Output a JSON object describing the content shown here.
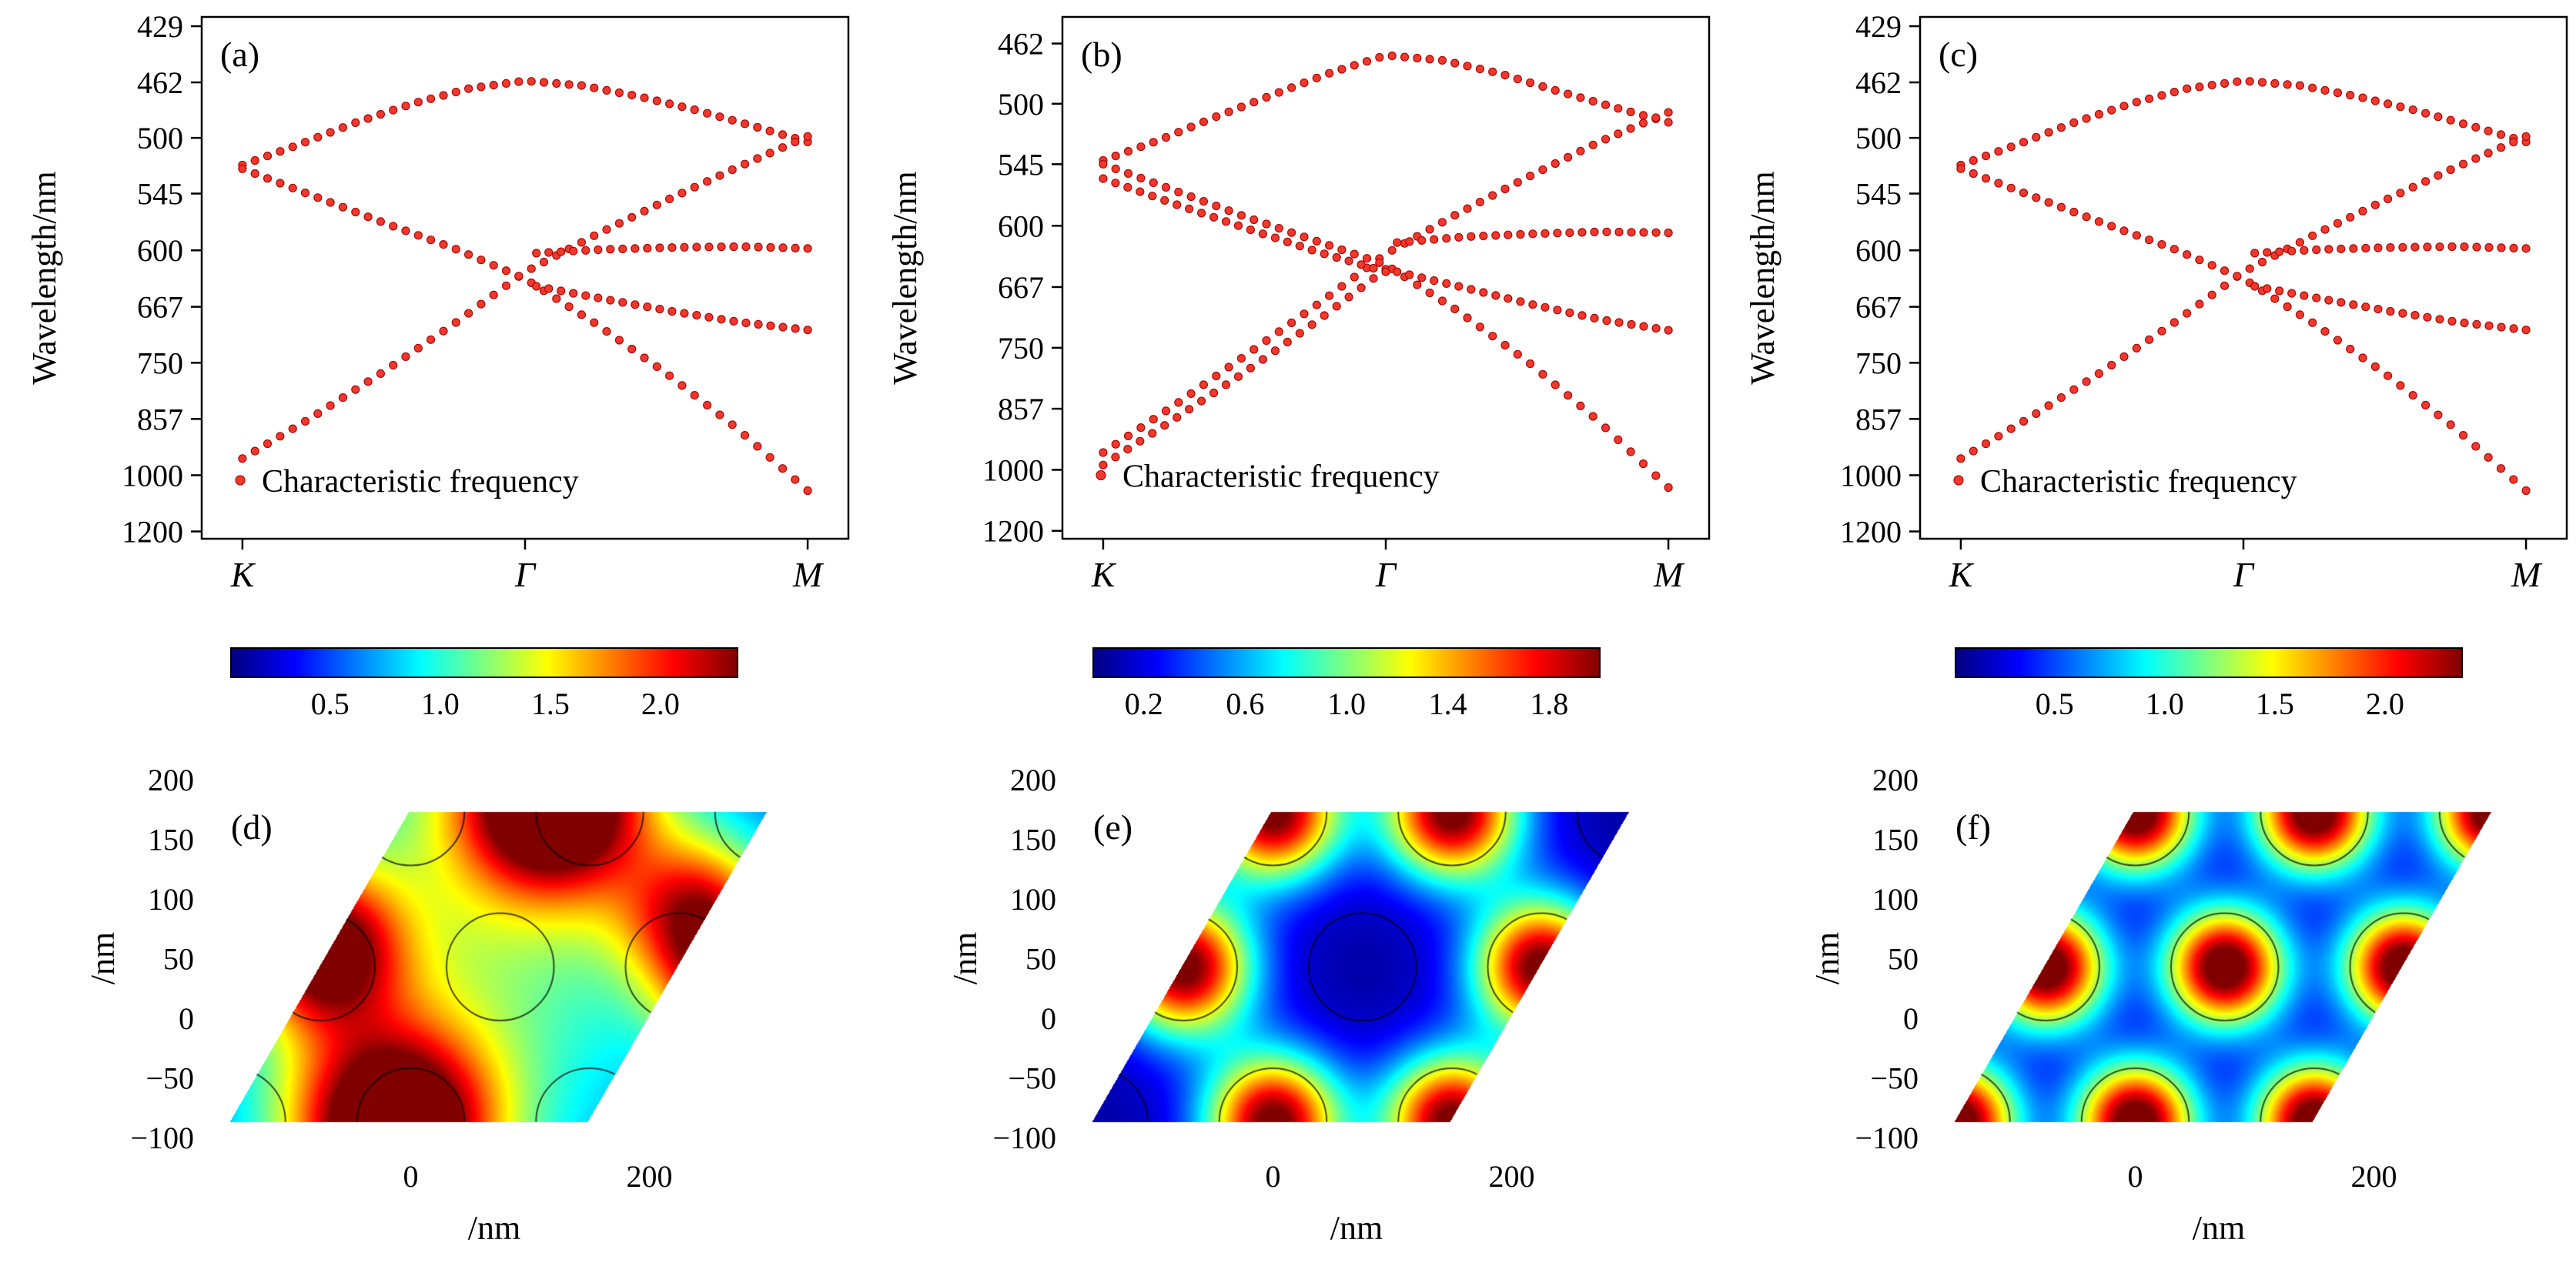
{
  "colors": {
    "dot": "#f2372b",
    "dot_edge": "#a80b0b",
    "axis": "#000000",
    "background": "#ffffff"
  },
  "chart_data": [
    {
      "id": "a",
      "type": "scatter",
      "panel_label": "(a)",
      "ylabel": "Wavelength/nm",
      "legend": "Characteristic frequency",
      "x_ticks": [
        {
          "pos": 0,
          "label": "K"
        },
        {
          "pos": 0.5,
          "label": "Γ"
        },
        {
          "pos": 1,
          "label": "M"
        }
      ],
      "y_ticks": [
        429,
        462,
        500,
        545,
        600,
        667,
        750,
        857,
        1000,
        1200
      ],
      "wl_range": [
        424,
        1232
      ],
      "legend_wl": 1015,
      "bands": [
        {
          "x": [
            0,
            0.1,
            0.2,
            0.3,
            0.4,
            0.5,
            0.6,
            0.7,
            0.8,
            0.9,
            1.0
          ],
          "wl": [
            521,
            505,
            489,
            476,
            466,
            461,
            464,
            471,
            480,
            491,
            503
          ]
        },
        {
          "x": [
            0,
            0.125,
            0.25,
            0.375,
            0.5,
            0.625,
            0.75,
            0.875,
            1.0
          ],
          "wl": [
            953,
            852,
            765,
            690,
            624,
            584,
            551,
            523,
            499
          ]
        },
        {
          "x": [
            0,
            0.125,
            0.25,
            0.375,
            0.5,
            0.625,
            0.75,
            0.875,
            1.0
          ],
          "wl": [
            524,
            547,
            572,
            598,
            632,
            690,
            768,
            878,
            1048
          ]
        },
        {
          "x": [
            0.52,
            0.64,
            0.76,
            0.88,
            1.0
          ],
          "wl": [
            603,
            599,
            597,
            596,
            598
          ]
        },
        {
          "x": [
            0.52,
            0.64,
            0.76,
            0.88,
            1.0
          ],
          "wl": [
            641,
            657,
            673,
            688,
            699
          ]
        }
      ]
    },
    {
      "id": "b",
      "type": "scatter",
      "panel_label": "(b)",
      "ylabel": "Wavelength/nm",
      "legend": "Characteristic frequency",
      "x_ticks": [
        {
          "pos": 0,
          "label": "K"
        },
        {
          "pos": 0.5,
          "label": "Γ"
        },
        {
          "pos": 1,
          "label": "M"
        }
      ],
      "y_ticks": [
        462,
        500,
        545,
        600,
        667,
        750,
        857,
        1000,
        1200
      ],
      "wl_range": [
        447,
        1232
      ],
      "legend_wl": 1015,
      "bands": [
        {
          "x": [
            0,
            0.1,
            0.2,
            0.3,
            0.4,
            0.5,
            0.6,
            0.7,
            0.8,
            0.9,
            1.0
          ],
          "wl": [
            542,
            526,
            509,
            494,
            480,
            469,
            472,
            480,
            491,
            502,
            513
          ]
        },
        {
          "x": [
            0,
            0.125,
            0.25,
            0.375,
            0.5,
            0.625,
            0.75,
            0.875,
            1.0
          ],
          "wl": [
            955,
            851,
            763,
            691,
            629,
            589,
            556,
            528,
            506
          ]
        },
        {
          "x": [
            0,
            0.125,
            0.25,
            0.375,
            0.5
          ],
          "wl": [
            987,
            879,
            790,
            713,
            646
          ]
        },
        {
          "x": [
            0,
            0.125,
            0.25,
            0.375,
            0.5,
            0.625,
            0.75,
            0.875,
            1.0
          ],
          "wl": [
            545,
            567,
            591,
            615,
            641,
            696,
            771,
            881,
            1051
          ]
        },
        {
          "x": [
            0,
            0.125,
            0.25,
            0.375,
            0.5
          ],
          "wl": [
            557,
            579,
            602,
            626,
            649
          ]
        },
        {
          "x": [
            0.52,
            0.64,
            0.76,
            0.88,
            1.0
          ],
          "wl": [
            617,
            611,
            608,
            606,
            607
          ]
        },
        {
          "x": [
            0.52,
            0.64,
            0.76,
            0.88,
            1.0
          ],
          "wl": [
            649,
            668,
            689,
            709,
            724
          ]
        }
      ]
    },
    {
      "id": "c",
      "type": "scatter",
      "panel_label": "(c)",
      "ylabel": "Wavelength/nm",
      "legend": "Characteristic frequency",
      "x_ticks": [
        {
          "pos": 0,
          "label": "K"
        },
        {
          "pos": 0.5,
          "label": "Γ"
        },
        {
          "pos": 1,
          "label": "M"
        }
      ],
      "y_ticks": [
        429,
        462,
        500,
        545,
        600,
        667,
        750,
        857,
        1000,
        1200
      ],
      "wl_range": [
        424,
        1232
      ],
      "legend_wl": 1015,
      "bands": [
        {
          "x": [
            0,
            0.1,
            0.2,
            0.3,
            0.4,
            0.5,
            0.6,
            0.7,
            0.8,
            0.9,
            1.0
          ],
          "wl": [
            521,
            505,
            489,
            476,
            466,
            461,
            464,
            471,
            480,
            491,
            503
          ]
        },
        {
          "x": [
            0,
            0.125,
            0.25,
            0.375,
            0.5,
            0.625,
            0.75,
            0.875,
            1.0
          ],
          "wl": [
            953,
            852,
            765,
            690,
            624,
            584,
            551,
            523,
            499
          ]
        },
        {
          "x": [
            0,
            0.125,
            0.25,
            0.375,
            0.5,
            0.625,
            0.75,
            0.875,
            1.0
          ],
          "wl": [
            524,
            547,
            572,
            598,
            632,
            690,
            768,
            878,
            1048
          ]
        },
        {
          "x": [
            0.52,
            0.64,
            0.76,
            0.88,
            1.0
          ],
          "wl": [
            603,
            599,
            597,
            596,
            598
          ]
        },
        {
          "x": [
            0.52,
            0.64,
            0.76,
            0.88,
            1.0
          ],
          "wl": [
            641,
            657,
            673,
            688,
            699
          ]
        }
      ]
    },
    {
      "id": "d",
      "type": "heatmap",
      "panel_label": "(d)",
      "xlabel": "/nm",
      "ylabel": "/nm",
      "colormap": "jet",
      "x_ticks": [
        {
          "v": 0,
          "label": "0"
        },
        {
          "v": 200,
          "label": "200"
        }
      ],
      "y_ticks": [
        {
          "v": -100,
          "label": "−100"
        },
        {
          "v": -50,
          "label": "−50"
        },
        {
          "v": 0,
          "label": "0"
        },
        {
          "v": 50,
          "label": "50"
        },
        {
          "v": 100,
          "label": "100"
        },
        {
          "v": 150,
          "label": "150"
        },
        {
          "v": 200,
          "label": "200"
        }
      ],
      "colorbar": {
        "min": 0.05,
        "max": 2.35,
        "ticks": [
          {
            "v": 0.5,
            "label": "0.5"
          },
          {
            "v": 1.0,
            "label": "1.0"
          },
          {
            "v": 1.5,
            "label": "1.5"
          },
          {
            "v": 2.0,
            "label": "2.0"
          }
        ]
      },
      "cell": {
        "u_range": [
          -152,
          148
        ],
        "v_range": [
          -87,
          173
        ],
        "shear": 0.5769
      },
      "field": {
        "base": 0.45,
        "blobs": [
          [
            120,
            185,
            55,
            2.3
          ],
          [
            -15,
            -95,
            60,
            2.3
          ],
          [
            -75,
            58,
            45,
            1.7
          ],
          [
            243,
            85,
            45,
            1.5
          ],
          [
            268,
            18,
            38,
            1.2
          ],
          [
            40,
            70,
            150,
            0.75
          ]
        ]
      },
      "circles": {
        "r": 45,
        "centers": [
          [
            -150,
            -87
          ],
          [
            0,
            -87
          ],
          [
            150,
            -87
          ],
          [
            -75,
            43
          ],
          [
            75,
            43
          ],
          [
            225,
            43
          ],
          [
            0,
            173
          ],
          [
            150,
            173
          ],
          [
            300,
            173
          ]
        ]
      }
    },
    {
      "id": "e",
      "type": "heatmap",
      "panel_label": "(e)",
      "xlabel": "/nm",
      "ylabel": "/nm",
      "colormap": "jet",
      "x_ticks": [
        {
          "v": 0,
          "label": "0"
        },
        {
          "v": 200,
          "label": "200"
        }
      ],
      "y_ticks": [
        {
          "v": -100,
          "label": "−100"
        },
        {
          "v": -50,
          "label": "−50"
        },
        {
          "v": 0,
          "label": "0"
        },
        {
          "v": 50,
          "label": "50"
        },
        {
          "v": 100,
          "label": "100"
        },
        {
          "v": 150,
          "label": "150"
        },
        {
          "v": 200,
          "label": "200"
        }
      ],
      "colorbar": {
        "min": 0.0,
        "max": 2.0,
        "ticks": [
          {
            "v": 0.2,
            "label": "0.2"
          },
          {
            "v": 0.6,
            "label": "0.6"
          },
          {
            "v": 1.0,
            "label": "1.0"
          },
          {
            "v": 1.4,
            "label": "1.4"
          },
          {
            "v": 1.8,
            "label": "1.8"
          }
        ]
      },
      "cell": {
        "u_range": [
          -152,
          148
        ],
        "v_range": [
          -87,
          173
        ],
        "shear": 0.5769
      },
      "field": {
        "base": 0.08,
        "blobs": [
          [
            0,
            -87,
            40,
            2.0
          ],
          [
            150,
            -87,
            40,
            2.0
          ],
          [
            -75,
            43,
            40,
            2.0
          ],
          [
            225,
            43,
            40,
            2.0
          ],
          [
            0,
            173,
            40,
            2.0
          ],
          [
            150,
            173,
            40,
            2.0
          ]
        ]
      },
      "circles": {
        "r": 45,
        "centers": [
          [
            -150,
            -87
          ],
          [
            0,
            -87
          ],
          [
            150,
            -87
          ],
          [
            -75,
            43
          ],
          [
            75,
            43
          ],
          [
            225,
            43
          ],
          [
            0,
            173
          ],
          [
            150,
            173
          ],
          [
            300,
            173
          ]
        ]
      }
    },
    {
      "id": "f",
      "type": "heatmap",
      "panel_label": "(f)",
      "xlabel": "/nm",
      "ylabel": "/nm",
      "colormap": "jet",
      "x_ticks": [
        {
          "v": 0,
          "label": "0"
        },
        {
          "v": 200,
          "label": "200"
        }
      ],
      "y_ticks": [
        {
          "v": -100,
          "label": "−100"
        },
        {
          "v": -50,
          "label": "−50"
        },
        {
          "v": 0,
          "label": "0"
        },
        {
          "v": 50,
          "label": "50"
        },
        {
          "v": 100,
          "label": "100"
        },
        {
          "v": 150,
          "label": "150"
        },
        {
          "v": 200,
          "label": "200"
        }
      ],
      "colorbar": {
        "min": 0.05,
        "max": 2.35,
        "ticks": [
          {
            "v": 0.5,
            "label": "0.5"
          },
          {
            "v": 1.0,
            "label": "1.0"
          },
          {
            "v": 1.5,
            "label": "1.5"
          },
          {
            "v": 2.0,
            "label": "2.0"
          }
        ]
      },
      "cell": {
        "u_range": [
          -152,
          148
        ],
        "v_range": [
          -87,
          173
        ],
        "shear": 0.5769
      },
      "field": {
        "base": 0.08,
        "blobs": [
          [
            -150,
            -87,
            36,
            2.5
          ],
          [
            0,
            -87,
            36,
            2.5
          ],
          [
            150,
            -87,
            36,
            2.5
          ],
          [
            -75,
            43,
            36,
            2.5
          ],
          [
            75,
            43,
            36,
            2.5
          ],
          [
            225,
            43,
            36,
            2.5
          ],
          [
            0,
            173,
            36,
            2.5
          ],
          [
            150,
            173,
            36,
            2.5
          ],
          [
            300,
            173,
            36,
            2.5
          ]
        ]
      },
      "circles": {
        "r": 45,
        "centers": [
          [
            -150,
            -87
          ],
          [
            0,
            -87
          ],
          [
            150,
            -87
          ],
          [
            -75,
            43
          ],
          [
            75,
            43
          ],
          [
            225,
            43
          ],
          [
            0,
            173
          ],
          [
            150,
            173
          ],
          [
            300,
            173
          ]
        ]
      }
    }
  ]
}
